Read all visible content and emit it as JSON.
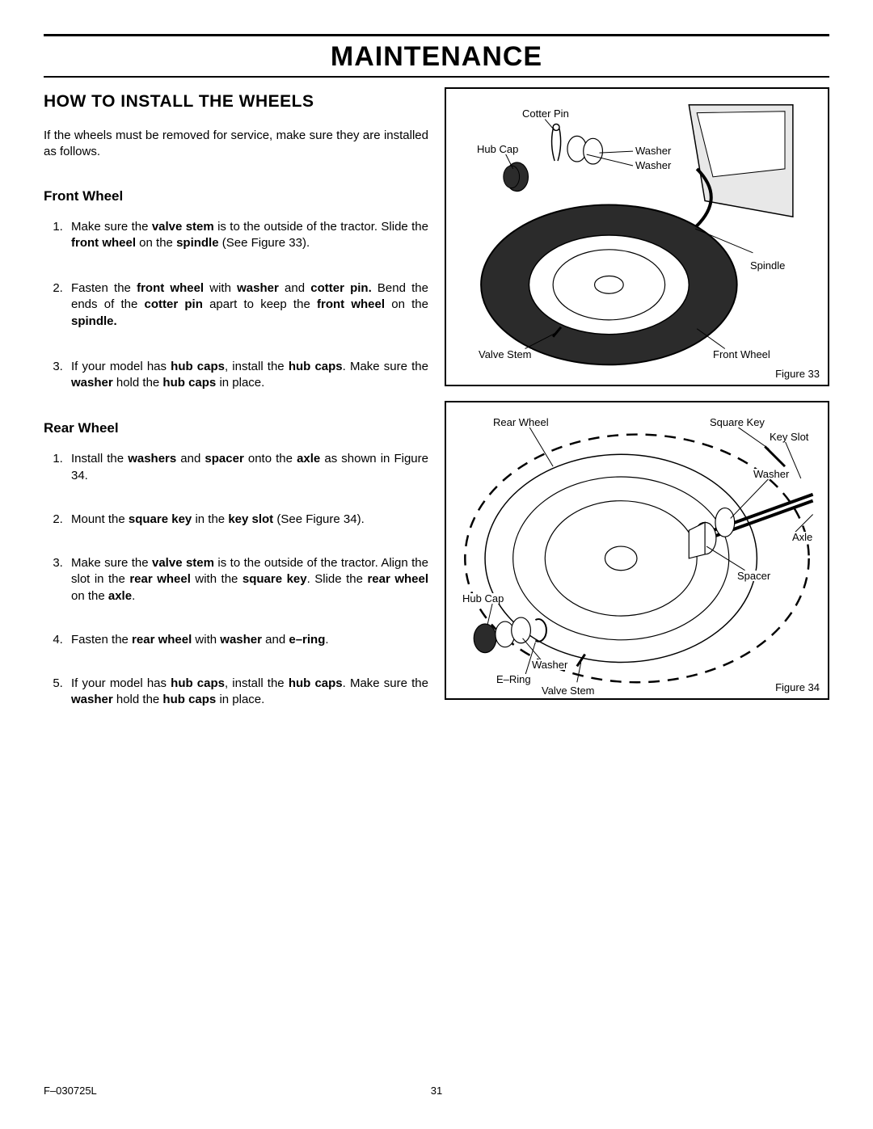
{
  "title": "MAINTENANCE",
  "section": "HOW TO INSTALL THE WHEELS",
  "intro": "If the wheels must be removed for service, make sure they are installed as follows.",
  "front": {
    "heading": "Front Wheel",
    "steps": [
      "Make sure the <b>valve stem</b> is to the outside of the tractor. Slide the <b>front wheel</b> on the <b>spindle</b> (See Figure 33).",
      "Fasten the <b>front wheel</b> with <b>washer</b> and <b>cotter pin.</b> Bend the ends of the <b>cotter pin</b> apart to keep the <b>front wheel</b> on the <b>spindle.</b>",
      "If your model has <b>hub caps</b>, install the <b>hub caps</b>. Make sure the <b>washer</b> hold the <b>hub caps</b> in place."
    ]
  },
  "rear": {
    "heading": "Rear Wheel",
    "steps": [
      "Install the <b>washers</b> and <b>spacer</b> onto the <b>axle</b> as shown in Figure 34.",
      "Mount  the <b>square key</b> in the <b>key slot</b> (See Figure 34).",
      "Make sure the <b>valve stem</b> is to the outside of the tractor. Align the slot in the <b>rear wheel</b> with the <b>square key</b>. Slide the <b>rear wheel</b> on the <b>axle</b>.",
      "Fasten the <b>rear wheel</b> with <b>washer</b> and <b>e–ring</b>.",
      "If your model has <b>hub caps</b>, install the <b>hub caps</b>. Make sure the <b>washer</b> hold the <b>hub caps</b> in place."
    ]
  },
  "fig33": {
    "caption": "Figure 33",
    "labels": {
      "cotter_pin": "Cotter Pin",
      "hub_cap": "Hub Cap",
      "washer1": "Washer",
      "washer2": "Washer",
      "spindle": "Spindle",
      "valve_stem": "Valve Stem",
      "front_wheel": "Front Wheel"
    }
  },
  "fig34": {
    "caption": "Figure 34",
    "labels": {
      "rear_wheel": "Rear Wheel",
      "square_key": "Square Key",
      "key_slot": "Key Slot",
      "washer1": "Washer",
      "axle": "Axle",
      "spacer": "Spacer",
      "hub_cap": "Hub Cap",
      "washer2": "Washer",
      "e_ring": "E–Ring",
      "valve_stem": "Valve Stem"
    }
  },
  "footer": {
    "doc": "F–030725L",
    "page": "31"
  },
  "colors": {
    "stroke": "#000000",
    "tire": "#2b2b2b",
    "fill": "#ffffff"
  }
}
